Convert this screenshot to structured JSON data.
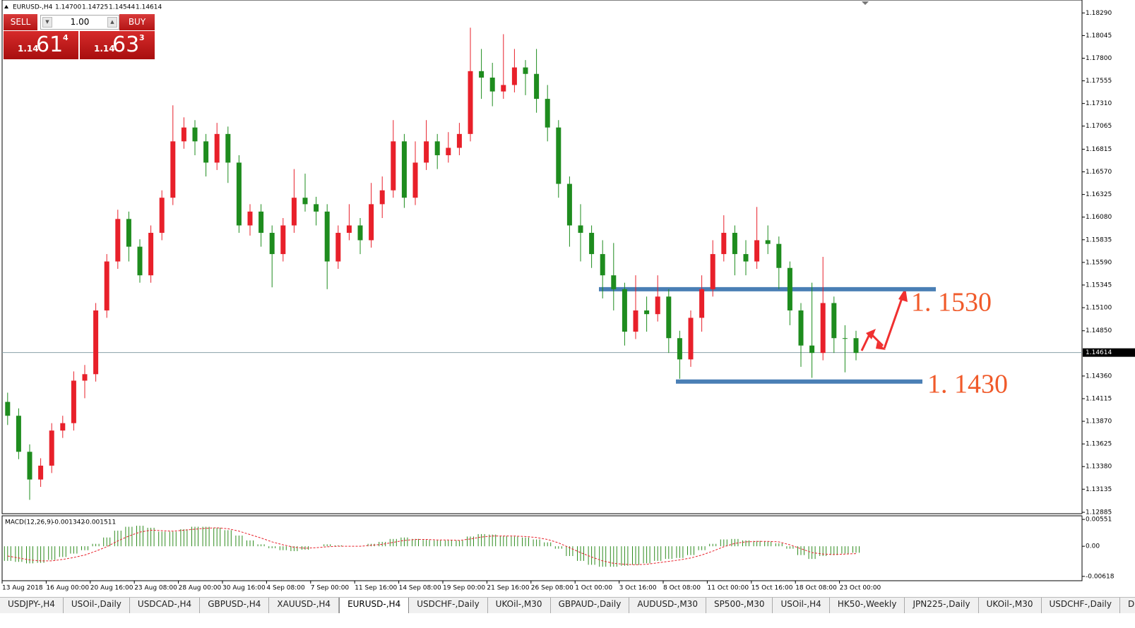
{
  "chart_data": [
    {
      "type": "candlestick",
      "title": "EURUSD-,H4",
      "header_values": [
        "1.14700",
        "1.14725",
        "1.14544",
        "1.14614"
      ],
      "categories": [
        "13 Aug 2018",
        null,
        null,
        null,
        "16 Aug 00:00",
        null,
        null,
        null,
        "20 Aug 16:00",
        null,
        null,
        null,
        "23 Aug 08:00",
        null,
        null,
        null,
        "28 Aug 00:00",
        null,
        null,
        null,
        "30 Aug 16:00",
        null,
        null,
        null,
        "4 Sep 08:00",
        null,
        null,
        null,
        "7 Sep 00:00",
        null,
        null,
        null,
        "11 Sep 16:00",
        null,
        null,
        null,
        "14 Sep 08:00",
        null,
        null,
        null,
        "19 Sep 00:00",
        null,
        null,
        null,
        "21 Sep 16:00",
        null,
        null,
        null,
        "26 Sep 08:00",
        null,
        null,
        null,
        "1 Oct 00:00",
        null,
        null,
        null,
        "3 Oct 16:00",
        null,
        null,
        null,
        "8 Oct 08:00",
        null,
        null,
        null,
        "11 Oct 00:00",
        null,
        null,
        null,
        "15 Oct 16:00",
        null,
        null,
        null,
        "18 Oct 08:00",
        null,
        null,
        null,
        "23 Oct 00:00",
        null
      ],
      "open": [
        1.1408,
        1.1393,
        1.1354,
        1.1324,
        1.1339,
        1.1377,
        1.1385,
        1.1431,
        1.1438,
        1.1507,
        1.156,
        1.1606,
        1.1576,
        1.1545,
        1.1591,
        1.1629,
        1.169,
        1.1705,
        1.169,
        1.1667,
        1.1698,
        1.1667,
        1.1599,
        1.1614,
        1.1591,
        1.1568,
        1.1599,
        1.1629,
        1.1622,
        1.1614,
        1.156,
        1.1591,
        1.1599,
        1.1583,
        1.1622,
        1.1637,
        1.169,
        1.1629,
        1.1667,
        1.169,
        1.1675,
        1.1683,
        1.1698,
        1.1766,
        1.1759,
        1.1744,
        1.1751,
        1.177,
        1.1763,
        1.1736,
        1.1705,
        1.1644,
        1.1599,
        1.1591,
        1.1568,
        1.1545,
        1.153,
        1.1484,
        1.1507,
        1.1503,
        1.1522,
        1.1477,
        1.1454,
        1.1499,
        1.153,
        1.1568,
        1.1591,
        1.1568,
        1.156,
        1.1583,
        1.1579,
        1.1553,
        1.1507,
        1.1469,
        1.1461,
        1.1515,
        1.1477,
        1.1477
      ],
      "high": [
        1.1418,
        1.1401,
        1.1362,
        1.1347,
        1.1385,
        1.1393,
        1.1441,
        1.1448,
        1.1515,
        1.1568,
        1.1616,
        1.1614,
        1.1584,
        1.1599,
        1.1637,
        1.1729,
        1.1716,
        1.1713,
        1.1698,
        1.171,
        1.1706,
        1.1675,
        1.1622,
        1.1622,
        1.1599,
        1.1607,
        1.166,
        1.1655,
        1.163,
        1.1622,
        1.1599,
        1.1622,
        1.1607,
        1.1645,
        1.1652,
        1.1713,
        1.1698,
        1.169,
        1.1713,
        1.1698,
        1.17,
        1.171,
        1.1813,
        1.179,
        1.1775,
        1.1806,
        1.179,
        1.1778,
        1.179,
        1.1751,
        1.1713,
        1.1652,
        1.1622,
        1.1599,
        1.1583,
        1.158,
        1.1537,
        1.1545,
        1.1522,
        1.1545,
        1.153,
        1.1485,
        1.1507,
        1.1545,
        1.1583,
        1.161,
        1.1599,
        1.1583,
        1.1619,
        1.1599,
        1.1587,
        1.156,
        1.1515,
        1.1537,
        1.1565,
        1.1522,
        1.1491,
        1.1485
      ],
      "low": [
        1.1383,
        1.1346,
        1.1302,
        1.1316,
        1.1331,
        1.1369,
        1.1377,
        1.1412,
        1.143,
        1.1499,
        1.1552,
        1.156,
        1.1537,
        1.1537,
        1.1583,
        1.1621,
        1.1682,
        1.1675,
        1.1652,
        1.1659,
        1.1645,
        1.1591,
        1.1588,
        1.1576,
        1.1532,
        1.156,
        1.1591,
        1.1614,
        1.1599,
        1.153,
        1.1552,
        1.1583,
        1.1568,
        1.1575,
        1.1607,
        1.1629,
        1.1618,
        1.1621,
        1.1659,
        1.166,
        1.1667,
        1.1675,
        1.169,
        1.1736,
        1.1728,
        1.1736,
        1.1743,
        1.174,
        1.1721,
        1.169,
        1.1629,
        1.1576,
        1.156,
        1.1553,
        1.152,
        1.1507,
        1.1469,
        1.1476,
        1.1484,
        1.1495,
        1.1461,
        1.1433,
        1.1446,
        1.1484,
        1.1522,
        1.156,
        1.1545,
        1.1545,
        1.1552,
        1.1568,
        1.153,
        1.1491,
        1.1446,
        1.1434,
        1.1453,
        1.1461,
        1.144,
        1.1453
      ],
      "close": [
        1.1393,
        1.1354,
        1.1324,
        1.1339,
        1.1377,
        1.1385,
        1.1431,
        1.1438,
        1.1507,
        1.156,
        1.1606,
        1.1576,
        1.1545,
        1.1591,
        1.1629,
        1.169,
        1.1705,
        1.169,
        1.1667,
        1.1698,
        1.1667,
        1.1599,
        1.1614,
        1.1591,
        1.1568,
        1.1599,
        1.1629,
        1.1622,
        1.1614,
        1.156,
        1.1591,
        1.1599,
        1.1583,
        1.1622,
        1.1637,
        1.169,
        1.1629,
        1.1667,
        1.169,
        1.1675,
        1.1683,
        1.1698,
        1.1766,
        1.1759,
        1.1744,
        1.1751,
        1.177,
        1.1763,
        1.1736,
        1.1705,
        1.1644,
        1.1599,
        1.1591,
        1.1568,
        1.1545,
        1.153,
        1.1484,
        1.1507,
        1.1503,
        1.1522,
        1.1477,
        1.1454,
        1.1499,
        1.153,
        1.1568,
        1.1591,
        1.1568,
        1.156,
        1.1583,
        1.1579,
        1.1553,
        1.1507,
        1.1469,
        1.1461,
        1.1515,
        1.1477,
        1.1477,
        1.1461
      ],
      "up_color": "#e8202a",
      "down_color": "#1e8c1e",
      "ylim": [
        1.1287,
        1.1843
      ],
      "yticks": [
        {
          "value": 1.1829,
          "label": "1.18290"
        },
        {
          "value": 1.18045,
          "label": "1.18045"
        },
        {
          "value": 1.178,
          "label": "1.17800"
        },
        {
          "value": 1.17555,
          "label": "1.17555"
        },
        {
          "value": 1.1731,
          "label": "1.17310"
        },
        {
          "value": 1.17065,
          "label": "1.17065"
        },
        {
          "value": 1.16815,
          "label": "1.16815"
        },
        {
          "value": 1.1657,
          "label": "1.16570"
        },
        {
          "value": 1.16325,
          "label": "1.16325"
        },
        {
          "value": 1.1608,
          "label": "1.16080"
        },
        {
          "value": 1.15835,
          "label": "1.15835"
        },
        {
          "value": 1.1559,
          "label": "1.15590"
        },
        {
          "value": 1.15345,
          "label": "1.15345"
        },
        {
          "value": 1.151,
          "label": "1.15100"
        },
        {
          "value": 1.1485,
          "label": "1.14850"
        },
        {
          "value": 1.1436,
          "label": "1.14360"
        },
        {
          "value": 1.14115,
          "label": "1.14115"
        },
        {
          "value": 1.1387,
          "label": "1.13870"
        },
        {
          "value": 1.13625,
          "label": "1.13625"
        },
        {
          "value": 1.1338,
          "label": "1.13380"
        },
        {
          "value": 1.13135,
          "label": "1.13135"
        },
        {
          "value": 1.12885,
          "label": "1.12885"
        }
      ],
      "current_price": {
        "value": 1.14614,
        "label": "1.14614"
      },
      "levels": [
        {
          "value": 1.153,
          "label": "1. 1530",
          "color": "#4a7fb5"
        },
        {
          "value": 1.143,
          "label": "1. 1430",
          "color": "#4a7fb5"
        }
      ]
    },
    {
      "type": "macd",
      "title": "MACD(12,26,9)",
      "histogram": [
        -0.003,
        -0.0032,
        -0.0035,
        -0.0034,
        -0.0028,
        -0.0022,
        -0.0015,
        -0.0008,
        0.0005,
        0.0018,
        0.0032,
        0.004,
        0.0042,
        0.0038,
        0.003,
        0.003,
        0.0035,
        0.004,
        0.004,
        0.0038,
        0.0033,
        0.0022,
        0.0012,
        0.0004,
        -0.0004,
        -0.0008,
        -0.001,
        -0.0007,
        0,
        0.0004,
        0.0002,
        0,
        0,
        0.0005,
        0.0009,
        0.0015,
        0.0018,
        0.0015,
        0.0013,
        0.0012,
        0.0012,
        0.0012,
        0.002,
        0.0025,
        0.0024,
        0.0021,
        0.002,
        0.0018,
        0.0014,
        0.0008,
        -0.0005,
        -0.002,
        -0.003,
        -0.0038,
        -0.0042,
        -0.0042,
        -0.004,
        -0.0038,
        -0.0035,
        -0.003,
        -0.0026,
        -0.0024,
        -0.0018,
        -0.0008,
        0.0005,
        0.0014,
        0.0015,
        0.0012,
        0.0011,
        0.001,
        0.0006,
        -0.0005,
        -0.0018,
        -0.0026,
        -0.002,
        -0.0018,
        -0.0015,
        -0.001342
      ],
      "signal": [
        -0.002,
        -0.0024,
        -0.0028,
        -0.003,
        -0.003,
        -0.0027,
        -0.0023,
        -0.0018,
        -0.001,
        -0.0001,
        0.0011,
        0.0021,
        0.0029,
        0.0033,
        0.0032,
        0.0031,
        0.0033,
        0.0035,
        0.0037,
        0.0038,
        0.0036,
        0.0031,
        0.0024,
        0.0017,
        0.0009,
        0.0003,
        -0.0002,
        -0.0004,
        -0.0003,
        -0.0001,
        0,
        0,
        0,
        0.0002,
        0.0004,
        0.0008,
        0.0012,
        0.0014,
        0.0014,
        0.0013,
        0.0013,
        0.0012,
        0.0015,
        0.0019,
        0.0021,
        0.0021,
        0.0021,
        0.002,
        0.0018,
        0.0014,
        0.0007,
        -0.0003,
        -0.0013,
        -0.0022,
        -0.003,
        -0.0035,
        -0.0037,
        -0.0038,
        -0.0037,
        -0.0034,
        -0.0031,
        -0.0028,
        -0.0024,
        -0.0018,
        -0.001,
        -0.0001,
        0.0006,
        0.0009,
        0.001,
        0.001,
        0.0009,
        0.0003,
        -0.0005,
        -0.0013,
        -0.0016,
        -0.0017,
        -0.0016,
        -0.001511
      ],
      "histogram_color": "#2e8b1e",
      "signal_color": "#e8202a",
      "ylim": [
        -0.00707,
        0.00625
      ],
      "yticks": [
        0.00551,
        {
          "value": 0,
          "label": "0.00"
        },
        -0.00618
      ]
    }
  ],
  "trade_panel": {
    "sell": "SELL",
    "buy": "BUY",
    "volume": "1.00",
    "bid": {
      "big": "1.14",
      "main": "61",
      "small": "4"
    },
    "ask": {
      "big": "1.14",
      "main": "63",
      "small": "3"
    }
  },
  "tabs": [
    "USDJPY-,H4",
    "USOil-,Daily",
    "USDCAD-,H4",
    "GBPUSD-,H4",
    "XAUUSD-,H4",
    "EURUSD-,H4",
    "USDCHF-,Daily",
    "UKOil-,M30",
    "GBPAUD-,Daily",
    "AUDUSD-,M30",
    "SP500-,M30",
    "USOil-,H4",
    "HK50-,Weekly",
    "JPN225-,Daily",
    "UKOil-,M30",
    "USDCHF-,Daily",
    "D"
  ],
  "active_tab": 5
}
